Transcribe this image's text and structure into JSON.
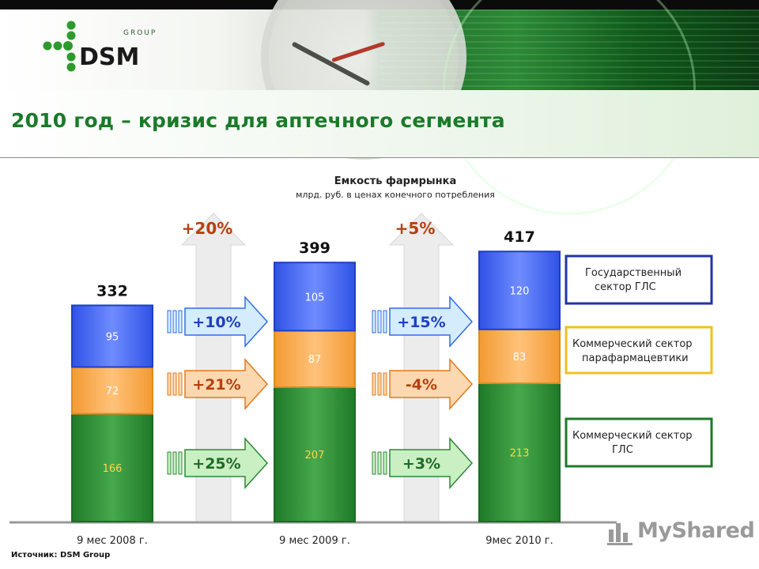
{
  "page_title": "2010 год – кризис для аптечного сегмента",
  "source": "Источник: DSM Group",
  "logo": {
    "text_main": "DSM",
    "text_group": "GROUP"
  },
  "watermark": "MyShared",
  "colors": {
    "title_green": "#1b7a2a",
    "gov_blue": "#3b5ee8",
    "parapharm_orange": "#f7a23a",
    "commercial_green": "#2b8a34",
    "growth_brown": "#b5400f"
  },
  "chart_data": {
    "type": "bar",
    "stacked": true,
    "title": "Емкость фармрынка",
    "subtitle": "млрд. руб. в ценах конечного потребления",
    "categories": [
      "9 мес 2008 г.",
      "9 мес 2009 г.",
      "9мес 2010 г."
    ],
    "totals": [
      332,
      399,
      417
    ],
    "series": [
      {
        "name": "Коммерческий сектор ГЛС",
        "color": "#2b8a34",
        "values": [
          166,
          207,
          213
        ]
      },
      {
        "name": "Коммерческий сектор парафармацевтики",
        "color": "#f7a23a",
        "values": [
          72,
          87,
          83
        ]
      },
      {
        "name": "Государственный сектор ГЛС",
        "color": "#3b5ee8",
        "values": [
          95,
          105,
          120
        ]
      }
    ],
    "growth_total": [
      "+20%",
      "+5%"
    ],
    "growth_by_series": [
      {
        "gov": "+10%",
        "parapharm": "+21%",
        "commercial": "+25%"
      },
      {
        "gov": "+15%",
        "parapharm": "-4%",
        "commercial": "+3%"
      }
    ],
    "legend_position": "right"
  }
}
